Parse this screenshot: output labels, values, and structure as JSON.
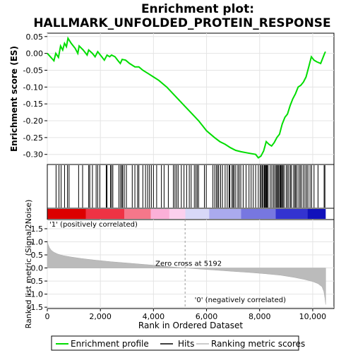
{
  "chart_data": {
    "type": "line",
    "title": "Enrichment plot: HALLMARK_UNFOLDED_PROTEIN_RESPONSE",
    "top_panel": {
      "ylabel": "Enrichment score (ES)",
      "ylim": [
        -0.33,
        0.06
      ],
      "yticks": [
        0.05,
        0.0,
        -0.05,
        -0.1,
        -0.15,
        -0.2,
        -0.25,
        -0.3
      ],
      "ytick_labels": [
        "0.05",
        "0.00",
        "-0.05",
        "-0.10",
        "-0.15",
        "-0.20",
        "-0.25",
        "-0.30"
      ],
      "series_name": "Enrichment profile",
      "series_color": "#00dd00",
      "es_curve": [
        [
          0,
          0.0
        ],
        [
          250,
          -0.022
        ],
        [
          320,
          0.0
        ],
        [
          420,
          -0.012
        ],
        [
          500,
          0.022
        ],
        [
          580,
          0.01
        ],
        [
          650,
          0.03
        ],
        [
          720,
          0.02
        ],
        [
          780,
          0.045
        ],
        [
          900,
          0.03
        ],
        [
          1050,
          0.015
        ],
        [
          1150,
          0.0
        ],
        [
          1200,
          0.022
        ],
        [
          1350,
          0.01
        ],
        [
          1500,
          -0.005
        ],
        [
          1560,
          0.01
        ],
        [
          1700,
          0.0
        ],
        [
          1800,
          -0.01
        ],
        [
          1900,
          0.005
        ],
        [
          2050,
          -0.01
        ],
        [
          2150,
          -0.02
        ],
        [
          2250,
          -0.005
        ],
        [
          2350,
          -0.01
        ],
        [
          2420,
          -0.005
        ],
        [
          2550,
          -0.01
        ],
        [
          2650,
          -0.02
        ],
        [
          2750,
          -0.03
        ],
        [
          2820,
          -0.018
        ],
        [
          2950,
          -0.02
        ],
        [
          3100,
          -0.03
        ],
        [
          3300,
          -0.04
        ],
        [
          3450,
          -0.04
        ],
        [
          3600,
          -0.05
        ],
        [
          3800,
          -0.06
        ],
        [
          4000,
          -0.07
        ],
        [
          4200,
          -0.08
        ],
        [
          4500,
          -0.1
        ],
        [
          4800,
          -0.125
        ],
        [
          5100,
          -0.15
        ],
        [
          5400,
          -0.175
        ],
        [
          5700,
          -0.2
        ],
        [
          6000,
          -0.23
        ],
        [
          6300,
          -0.25
        ],
        [
          6500,
          -0.262
        ],
        [
          6700,
          -0.27
        ],
        [
          6900,
          -0.28
        ],
        [
          7100,
          -0.288
        ],
        [
          7300,
          -0.292
        ],
        [
          7500,
          -0.295
        ],
        [
          7700,
          -0.298
        ],
        [
          7850,
          -0.3
        ],
        [
          7950,
          -0.31
        ],
        [
          8050,
          -0.305
        ],
        [
          8150,
          -0.29
        ],
        [
          8250,
          -0.262
        ],
        [
          8350,
          -0.27
        ],
        [
          8450,
          -0.275
        ],
        [
          8550,
          -0.265
        ],
        [
          8650,
          -0.25
        ],
        [
          8750,
          -0.24
        ],
        [
          8850,
          -0.21
        ],
        [
          8950,
          -0.19
        ],
        [
          9050,
          -0.18
        ],
        [
          9150,
          -0.155
        ],
        [
          9250,
          -0.135
        ],
        [
          9350,
          -0.12
        ],
        [
          9450,
          -0.1
        ],
        [
          9550,
          -0.095
        ],
        [
          9650,
          -0.085
        ],
        [
          9750,
          -0.07
        ],
        [
          9850,
          -0.04
        ],
        [
          9950,
          -0.01
        ],
        [
          10050,
          -0.02
        ],
        [
          10150,
          -0.025
        ],
        [
          10300,
          -0.03
        ],
        [
          10450,
          0.0
        ],
        [
          10480,
          0.005
        ]
      ]
    },
    "hits_panel": {
      "series_name": "Hits",
      "hit_ranks": [
        330,
        440,
        520,
        650,
        760,
        820,
        1180,
        1330,
        1560,
        1600,
        1700,
        1840,
        1900,
        1980,
        2220,
        2250,
        2380,
        2420,
        2470,
        2700,
        2760,
        2810,
        2840,
        2900,
        2980,
        3200,
        3300,
        3400,
        3450,
        3600,
        3700,
        3780,
        3850,
        3920,
        4000,
        4120,
        4300,
        4400,
        4560,
        4750,
        4810,
        4870,
        4930,
        5050,
        5150,
        5250,
        5350,
        5420,
        5540,
        5600,
        5650,
        5700,
        5920,
        5990,
        6240,
        6310,
        6370,
        6420,
        6460,
        6530,
        6600,
        6700,
        6780,
        6850,
        6880,
        6960,
        7000,
        7040,
        7100,
        7180,
        7230,
        7290,
        7380,
        7490,
        7600,
        7680,
        7760,
        7850,
        7950,
        8020,
        8060,
        8100,
        8140,
        8180,
        8210,
        8230,
        8260,
        8290,
        8320,
        8400,
        8460,
        8520,
        8570,
        8620,
        8650,
        8690,
        8720,
        8760,
        8790,
        8820,
        8860,
        8880,
        8920,
        9000,
        9050,
        9100,
        9160,
        9200,
        9280,
        9330,
        9360,
        9410,
        9480,
        9530,
        9580,
        9650,
        9710,
        9770,
        9820,
        9900,
        9960,
        10050,
        10200,
        10430,
        10460
      ]
    },
    "metric_panel": {
      "ylabel": "Ranked list metric (Signal2Noise)",
      "xlabel": "Rank in Ordered Dataset",
      "ylim": [
        -1.55,
        1.85
      ],
      "yticks": [
        1.5,
        1.0,
        0.5,
        0.0,
        -0.5,
        -1.0,
        -1.5
      ],
      "ytick_labels": [
        "1.5",
        "1.0",
        "0.5",
        "0.0",
        "-0.5",
        "-1.0",
        "-1.5"
      ],
      "series_name": "Ranking metric scores",
      "series_color": "#bbbbbb",
      "metric_curve": [
        [
          0,
          1.05
        ],
        [
          30,
          0.9
        ],
        [
          80,
          0.78
        ],
        [
          150,
          0.68
        ],
        [
          250,
          0.6
        ],
        [
          400,
          0.53
        ],
        [
          600,
          0.47
        ],
        [
          900,
          0.42
        ],
        [
          1300,
          0.36
        ],
        [
          1800,
          0.3
        ],
        [
          2400,
          0.24
        ],
        [
          3000,
          0.19
        ],
        [
          3600,
          0.14
        ],
        [
          4200,
          0.09
        ],
        [
          4700,
          0.04
        ],
        [
          5192,
          0.0
        ],
        [
          5700,
          -0.04
        ],
        [
          6300,
          -0.08
        ],
        [
          7000,
          -0.13
        ],
        [
          7600,
          -0.17
        ],
        [
          8200,
          -0.22
        ],
        [
          8800,
          -0.28
        ],
        [
          9300,
          -0.36
        ],
        [
          9700,
          -0.44
        ],
        [
          10000,
          -0.52
        ],
        [
          10200,
          -0.6
        ],
        [
          10350,
          -0.72
        ],
        [
          10420,
          -0.9
        ],
        [
          10460,
          -1.15
        ],
        [
          10490,
          -1.4
        ]
      ],
      "zero_cross_label": "Zero cross at 5192",
      "zero_cross_rank": 5192,
      "pos_label": "'1' (positively correlated)",
      "neg_label": "'0' (negatively correlated)"
    },
    "xlim": [
      0,
      10800
    ],
    "xticks": [
      0,
      2000,
      4000,
      6000,
      8000,
      10000
    ],
    "xtick_labels": [
      "0",
      "2,000",
      "4,000",
      "6,000",
      "8,000",
      "10,000"
    ],
    "color_bar": [
      {
        "from": 0,
        "to": 1450,
        "color": "#dd0000"
      },
      {
        "from": 1450,
        "to": 2900,
        "color": "#ee3344"
      },
      {
        "from": 2900,
        "to": 3900,
        "color": "#f5778a"
      },
      {
        "from": 3900,
        "to": 4600,
        "color": "#fbb0d8"
      },
      {
        "from": 4600,
        "to": 5200,
        "color": "#fcd0ee"
      },
      {
        "from": 5200,
        "to": 6100,
        "color": "#d8d8f8"
      },
      {
        "from": 6100,
        "to": 7300,
        "color": "#aaaaee"
      },
      {
        "from": 7300,
        "to": 8600,
        "color": "#7777e0"
      },
      {
        "from": 8600,
        "to": 9800,
        "color": "#3333d0"
      },
      {
        "from": 9800,
        "to": 10490,
        "color": "#1111bb"
      }
    ],
    "legend": {
      "placement": "bottom",
      "items": [
        "Enrichment profile",
        "Hits",
        "Ranking metric scores"
      ]
    }
  }
}
